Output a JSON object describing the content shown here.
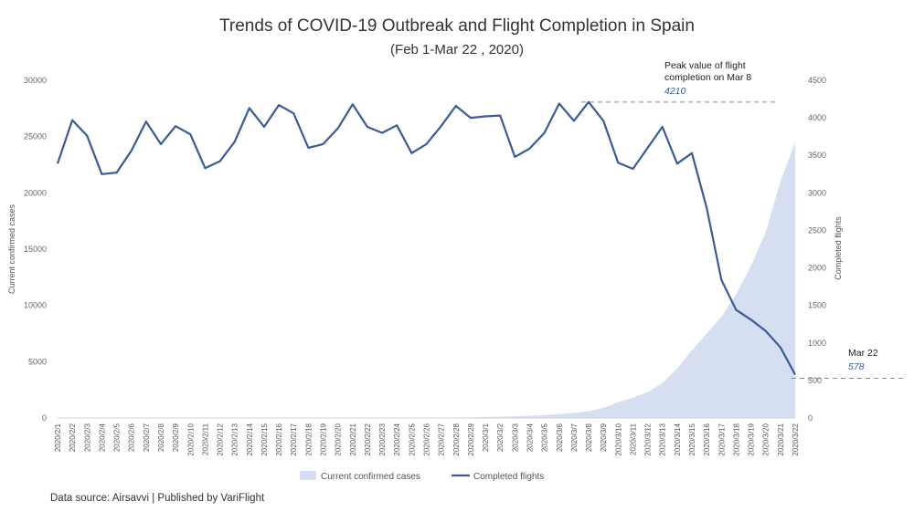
{
  "chart_data": {
    "type": "line",
    "title": "Trends of COVID-19 Outbreak and Flight Completion in Spain",
    "subtitle": "(Feb 1-Mar 22 , 2020)",
    "ylabel_left": "Current confirmed cases",
    "ylabel_right": "Completed flights",
    "ylim_left": [
      0,
      30000
    ],
    "ylim_right": [
      0,
      4500
    ],
    "yticks_left": [
      "0",
      "5000",
      "10000",
      "15000",
      "20000",
      "25000",
      "30000"
    ],
    "yticks_right": [
      "0",
      "500",
      "1000",
      "1500",
      "2000",
      "2500",
      "3000",
      "3500",
      "4000",
      "4500"
    ],
    "categories": [
      "2020/2/1",
      "2020/2/2",
      "2020/2/3",
      "2020/2/4",
      "2020/2/5",
      "2020/2/6",
      "2020/2/7",
      "2020/2/8",
      "2020/2/9",
      "2020/2/10",
      "2020/2/11",
      "2020/2/12",
      "2020/2/13",
      "2020/2/14",
      "2020/2/15",
      "2020/2/16",
      "2020/2/17",
      "2020/2/18",
      "2020/2/19",
      "2020/2/20",
      "2020/2/21",
      "2020/2/22",
      "2020/2/23",
      "2020/2/24",
      "2020/2/25",
      "2020/2/26",
      "2020/2/27",
      "2020/2/28",
      "2020/2/29",
      "2020/3/1",
      "2020/3/2",
      "2020/3/3",
      "2020/3/4",
      "2020/3/5",
      "2020/3/6",
      "2020/3/7",
      "2020/3/8",
      "2020/3/9",
      "2020/3/10",
      "2020/3/11",
      "2020/3/12",
      "2020/3/13",
      "2020/3/14",
      "2020/3/15",
      "2020/3/16",
      "2020/3/17",
      "2020/3/18",
      "2020/3/19",
      "2020/3/20",
      "2020/3/21",
      "2020/3/22"
    ],
    "series": [
      {
        "name": "Current confirmed cases",
        "axis": "left",
        "type": "area",
        "color": "#d6dff2",
        "values": [
          1,
          1,
          1,
          1,
          1,
          1,
          1,
          1,
          1,
          1,
          1,
          1,
          1,
          1,
          1,
          1,
          1,
          1,
          1,
          1,
          1,
          1,
          1,
          1,
          4,
          8,
          15,
          30,
          50,
          80,
          110,
          150,
          200,
          250,
          350,
          450,
          600,
          900,
          1400,
          1800,
          2300,
          3100,
          4400,
          6000,
          7500,
          9000,
          11000,
          13500,
          16500,
          21000,
          24500
        ]
      },
      {
        "name": "Completed flights",
        "axis": "right",
        "type": "line",
        "color": "#3b5b92",
        "values": [
          3390,
          3970,
          3760,
          3250,
          3270,
          3560,
          3950,
          3650,
          3890,
          3780,
          3330,
          3420,
          3680,
          4130,
          3880,
          4170,
          4060,
          3600,
          3650,
          3860,
          4180,
          3880,
          3800,
          3900,
          3530,
          3650,
          3890,
          4160,
          4000,
          4020,
          4030,
          3480,
          3590,
          3800,
          4190,
          3960,
          4210,
          3960,
          3400,
          3320,
          3600,
          3880,
          3390,
          3530,
          2800,
          1840,
          1440,
          1310,
          1160,
          940,
          578
        ]
      }
    ],
    "annotations": [
      {
        "title": "Peak value of flight completion on Mar 8",
        "value": "4210",
        "category": "2020/3/8",
        "y": 4210
      },
      {
        "title": "Mar 22",
        "value": "578",
        "category": "2020/3/22",
        "y": 578
      }
    ],
    "legend_position": "bottom",
    "grid": false
  },
  "footer": {
    "source": "Data source: Airsavvi | Published by VariFlight"
  }
}
